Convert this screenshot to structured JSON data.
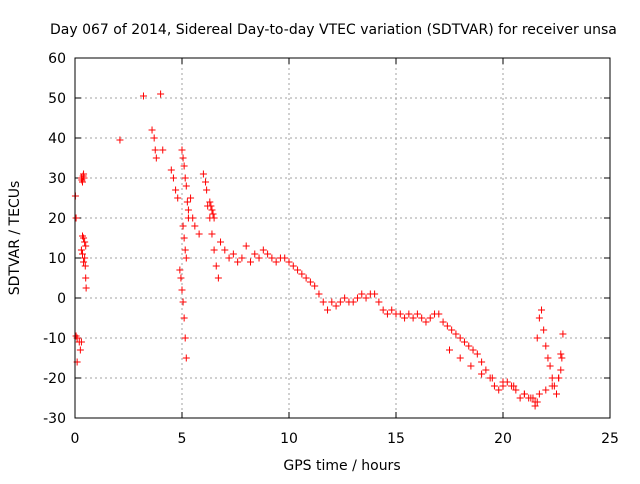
{
  "chart_data": {
    "type": "scatter",
    "title": "Day 067 of 2014, Sidereal Day-to-day VTEC variation (SDTVAR) for receiver unsa",
    "xlabel": "GPS time / hours",
    "ylabel": "SDTVAR / TECUs",
    "xlim": [
      0,
      25
    ],
    "ylim": [
      -30,
      60
    ],
    "x_ticks": [
      0,
      5,
      10,
      15,
      20,
      25
    ],
    "y_ticks": [
      -30,
      -20,
      -10,
      0,
      10,
      20,
      30,
      40,
      50,
      60
    ],
    "grid": true,
    "marker": "+",
    "marker_color": "#ff0000",
    "series": [
      {
        "name": "SDTVAR",
        "x": [
          0.02,
          0.05,
          0.05,
          0.1,
          0.1,
          0.2,
          0.25,
          0.3,
          0.35,
          0.4,
          0.45,
          0.5,
          0.3,
          0.32,
          0.35,
          0.38,
          0.4,
          0.42,
          0.45,
          0.48,
          0.5,
          0.52,
          0.3,
          0.35,
          0.4,
          2.1,
          3.2,
          3.6,
          3.7,
          3.75,
          4.0,
          3.8,
          4.1,
          4.5,
          4.6,
          4.7,
          4.8,
          5.0,
          5.05,
          5.1,
          5.15,
          5.2,
          5.25,
          5.3,
          4.9,
          4.95,
          5.0,
          5.05,
          5.1,
          5.15,
          5.2,
          5.05,
          5.1,
          5.15,
          5.2,
          5.3,
          5.4,
          5.5,
          5.6,
          5.8,
          6.0,
          6.1,
          6.15,
          6.2,
          6.3,
          6.4,
          6.5,
          6.6,
          6.7,
          6.3,
          6.35,
          6.4,
          6.45,
          6.5,
          6.8,
          7.0,
          7.2,
          7.4,
          7.6,
          7.8,
          8.0,
          8.2,
          8.4,
          8.6,
          8.8,
          9.0,
          9.2,
          9.4,
          9.6,
          9.8,
          10.0,
          10.2,
          10.4,
          10.6,
          10.8,
          11.0,
          11.2,
          11.4,
          11.6,
          11.8,
          12.0,
          12.2,
          12.4,
          12.6,
          12.8,
          13.0,
          13.2,
          13.4,
          13.6,
          13.8,
          14.0,
          14.2,
          14.4,
          14.6,
          14.8,
          15.0,
          15.2,
          15.4,
          15.6,
          15.8,
          16.0,
          16.2,
          16.4,
          16.6,
          16.8,
          17.0,
          17.2,
          17.4,
          17.6,
          17.8,
          18.0,
          18.2,
          18.4,
          18.6,
          18.8,
          19.0,
          19.2,
          19.4,
          19.6,
          19.8,
          20.0,
          20.2,
          20.4,
          20.6,
          20.8,
          21.0,
          21.2,
          21.4,
          21.5,
          21.6,
          21.7,
          21.8,
          21.9,
          22.0,
          22.1,
          22.2,
          22.3,
          22.4,
          22.5,
          22.6,
          22.7,
          22.8,
          17.5,
          18.0,
          18.5,
          19.0,
          19.5,
          20.0,
          20.5,
          21.0,
          21.3,
          21.5,
          21.6,
          21.7,
          22.0,
          22.3,
          22.6,
          22.7,
          22.75
        ],
        "y": [
          25.5,
          20,
          -9.5,
          -16,
          -10,
          -11,
          -13,
          -11,
          15.5,
          15,
          14,
          13,
          30,
          29.5,
          29,
          30.5,
          31,
          30,
          10,
          8,
          5,
          2.5,
          12,
          11,
          9,
          39.5,
          50.5,
          42,
          40,
          37,
          51,
          35,
          37,
          32,
          30,
          27,
          25,
          37,
          35,
          33,
          30,
          28,
          24,
          20,
          7,
          5,
          2,
          -1,
          -5,
          -10,
          -15,
          18,
          15,
          12,
          10,
          22,
          25,
          20,
          18,
          16,
          31,
          29,
          27,
          23,
          20,
          16,
          12,
          8,
          5,
          24,
          23,
          22,
          21,
          20,
          14,
          12,
          10,
          11,
          9,
          10,
          13,
          9,
          11,
          10,
          12,
          11,
          10,
          9,
          10,
          10,
          9,
          8,
          7,
          6,
          5,
          4,
          3,
          1,
          -1,
          -3,
          -1,
          -2,
          -1,
          0,
          -1,
          -1,
          0,
          1,
          0,
          1,
          1,
          -1,
          -3,
          -4,
          -3,
          -4,
          -4,
          -5,
          -4,
          -5,
          -4,
          -5,
          -6,
          -5,
          -4,
          -4,
          -6,
          -7,
          -8,
          -9,
          -10,
          -11,
          -12,
          -13,
          -14,
          -16,
          -18,
          -20,
          -22,
          -23,
          -22,
          -21,
          -22,
          -23,
          -25,
          -24,
          -25,
          -25,
          -26,
          -10,
          -5,
          -3,
          -8,
          -12,
          -15,
          -17,
          -20,
          -22,
          -24,
          -20,
          -14,
          -9,
          -13,
          -15,
          -17,
          -19,
          -20,
          -21,
          -22,
          -24,
          -25,
          -27,
          -26,
          -24,
          -23,
          -22,
          -20,
          -18,
          -15
        ]
      }
    ]
  }
}
